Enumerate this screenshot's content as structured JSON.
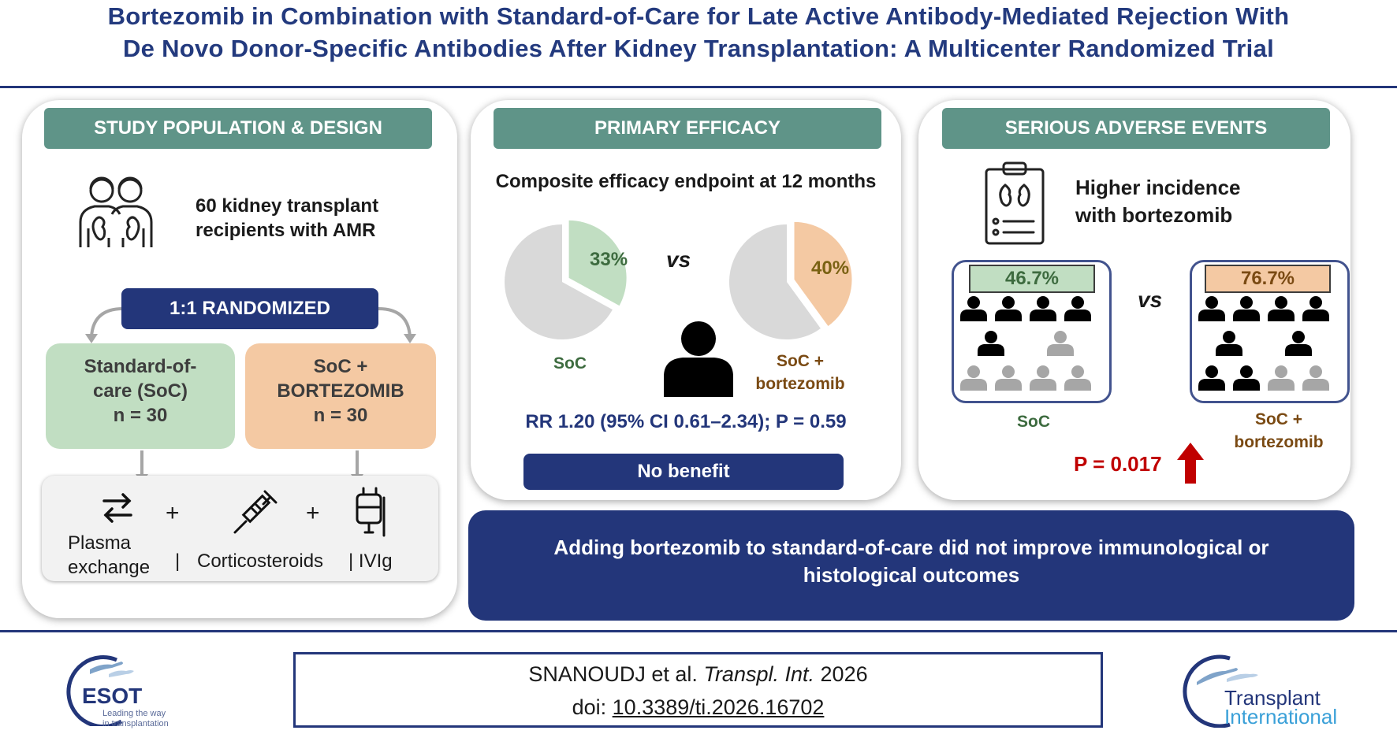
{
  "title": {
    "line1": "Bortezomib in Combination with Standard-of-Care for Late Active Antibody-Mediated Rejection With",
    "line2": "De Novo Donor-Specific Antibodies After Kidney Transplantation: A Multicenter Randomized Trial"
  },
  "design": {
    "header": "STUDY POPULATION & DESIGN",
    "population_line1": "60 kidney transplant",
    "population_line2": "recipients with AMR",
    "randomized": "1:1 RANDOMIZED",
    "soc_line1": "Standard-of-",
    "soc_line2": "care (SoC)",
    "soc_n": "n = 30",
    "btz_line1": "SoC +",
    "btz_line2": "BORTEZOMIB",
    "btz_n": "n = 30",
    "plus": "+",
    "plasma_line1": "Plasma",
    "plasma_line2": "exchange",
    "sep": "|",
    "corticosteroids": "Corticosteroids",
    "ivig": "| IVIg"
  },
  "efficacy": {
    "header": "PRIMARY EFFICACY",
    "endpoint": "Composite efficacy endpoint at 12 months",
    "soc_pct_label": "33%",
    "btz_pct_label": "40%",
    "vs": "vs",
    "soc_label": "SoC",
    "btz_label_line1": "SoC +",
    "btz_label_line2": "bortezomib",
    "rr": "RR 1.20 (95% CI 0.61–2.34); P = 0.59",
    "conclusion": "No benefit"
  },
  "safety": {
    "header": "SERIOUS ADVERSE EVENTS",
    "incidence_line1": "Higher incidence",
    "incidence_line2": "with bortezomib",
    "soc_pct_label": "46.7%",
    "btz_pct_label": "76.7%",
    "vs": "vs",
    "soc_label": "SoC",
    "btz_label_line1": "SoC +",
    "btz_label_line2": "bortezomib",
    "p_value": "P = 0.017"
  },
  "bottom_line": {
    "line1": "Adding bortezomib to standard-of-care did not improve immunological or",
    "line2": "histological outcomes"
  },
  "citation": {
    "authors": "SNANOUDJ et al.",
    "journal": "Transpl. Int.",
    "year": "2026",
    "doi_label": "doi:",
    "doi": "10.3389/ti.2026.16702"
  },
  "logos": {
    "esot_name": "ESOT",
    "esot_tag1": "Leading the way",
    "esot_tag2": "in transplantation",
    "ti_line1": "Transplant",
    "ti_line2": "International"
  },
  "chart_data": [
    {
      "type": "pie",
      "name": "SoC",
      "slices": [
        {
          "label": "33%",
          "value": 33
        },
        {
          "label": "",
          "value": 67
        }
      ]
    },
    {
      "type": "pie",
      "name": "SoC + bortezomib",
      "slices": [
        {
          "label": "40%",
          "value": 40
        },
        {
          "label": "",
          "value": 60
        }
      ]
    }
  ],
  "icon_grid": {
    "soc_highlight_fraction": 0.467,
    "btz_highlight_fraction": 0.767
  },
  "colors": {
    "navy": "#23367a",
    "teal_header": "#5f9488",
    "soc_green": "#c1dec2",
    "btz_peach": "#f4c9a3",
    "pie_gray": "#d9d9d9",
    "alert_red": "#c00000"
  }
}
